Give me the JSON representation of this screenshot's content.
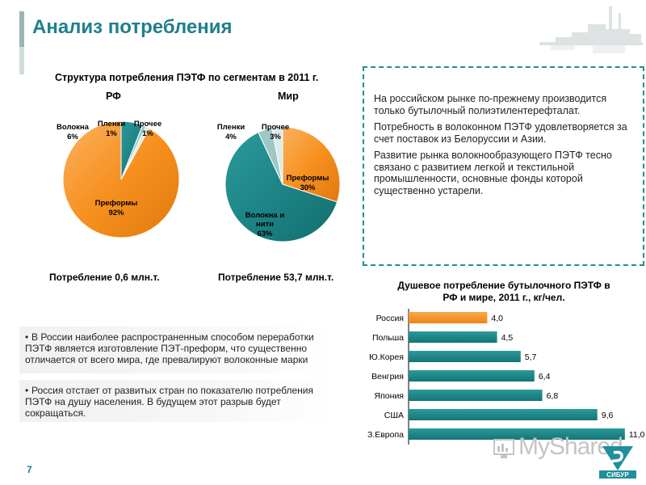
{
  "page": {
    "title": "Анализ потребления",
    "page_number": "7",
    "watermark": "MyShared"
  },
  "pies": {
    "title": "Структура потребления ПЭТФ по сегментам в 2011 г.",
    "rf": {
      "subtitle": "РФ",
      "consumption": "Потребление 0,6 млн.т.",
      "labels": {
        "preforms": [
          "Преформы",
          "92%"
        ],
        "fibers": [
          "Волокна",
          "6%"
        ],
        "films": [
          "Пленки",
          "1%"
        ],
        "other": [
          "Прочее",
          "1%"
        ]
      }
    },
    "world": {
      "subtitle": "Мир",
      "consumption": "Потребление 53,7 млн.т.",
      "labels": {
        "preforms": [
          "Преформы",
          "30%"
        ],
        "fibers": [
          "Волокна и",
          "нити",
          "63%"
        ],
        "films": [
          "Пленки",
          "4%"
        ],
        "other": [
          "Прочее",
          "3%"
        ]
      }
    }
  },
  "info_box": {
    "p1": "На российском рынке по-прежнему производится только бутылочный полиэтилентерефталат.",
    "p2": "Потребность в волоконном ПЭТФ удовлетворяется за счет поставок из Белоруссии и Азии.",
    "p3": "Развитие рынка волокнообразующего ПЭТФ тесно связано с развитием легкой и текстильной промышленности, основные фонды которой существенно устарели."
  },
  "bullets": {
    "b1": "В России наиболее распространенным способом переработки ПЭТФ является изготовление ПЭТ-преформ, что существенно отличается от всего мира, где превалируют волоконные марки",
    "b2": "Россия отстает от развитых стран по показателю потребления ПЭТФ на душу населения. В будущем этот разрыв будет сокращаться."
  },
  "colors": {
    "teal": "#1f7f8c",
    "orange": "#f7901e",
    "fibers_teal": "#1a8586",
    "light_teal": "#9ec7c6",
    "pale": "#d9ebea"
  },
  "chart_data": [
    {
      "type": "pie",
      "subtitle": "РФ",
      "slices": [
        {
          "name": "Преформы",
          "value": 92
        },
        {
          "name": "Волокна",
          "value": 6
        },
        {
          "name": "Пленки",
          "value": 1
        },
        {
          "name": "Прочее",
          "value": 1
        }
      ]
    },
    {
      "type": "pie",
      "subtitle": "Мир",
      "slices": [
        {
          "name": "Преформы",
          "value": 30
        },
        {
          "name": "Волокна и нити",
          "value": 63
        },
        {
          "name": "Пленки",
          "value": 4
        },
        {
          "name": "Прочее",
          "value": 3
        }
      ]
    },
    {
      "type": "bar",
      "orientation": "horizontal",
      "title": "Душевое потребление бутылочного ПЭТФ в РФ и мире, 2011 г., кг/чел.",
      "title_lines": [
        "Душевое потребление бутылочного ПЭТФ в",
        "РФ и мире, 2011 г., кг/чел."
      ],
      "categories": [
        "Россия",
        "Польша",
        "Ю.Корея",
        "Венгрия",
        "Япония",
        "США",
        "З.Европа"
      ],
      "values": [
        4.0,
        4.5,
        5.7,
        6.4,
        6.8,
        9.6,
        11.0
      ],
      "value_labels": [
        "4,0",
        "4,5",
        "5,7",
        "6,4",
        "6,8",
        "9,6",
        "11,0"
      ],
      "xlim": [
        0,
        11.5
      ],
      "highlight": "Россия"
    }
  ]
}
